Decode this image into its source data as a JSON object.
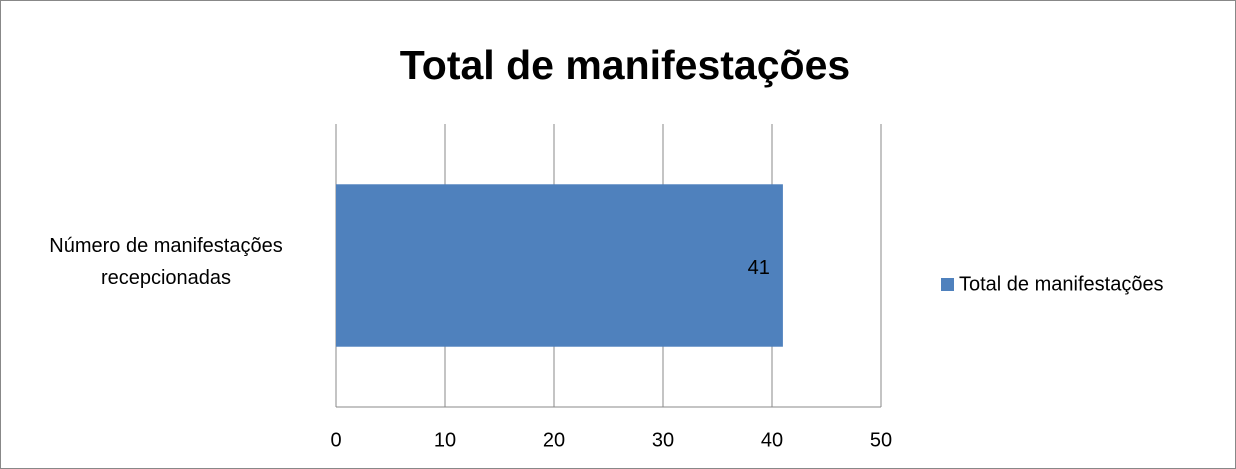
{
  "chart_data": {
    "type": "bar",
    "orientation": "horizontal",
    "title": "Total de manifestações",
    "categories": [
      "Número de manifestações recepcionadas"
    ],
    "series": [
      {
        "name": "Total de manifestações",
        "color": "#4f81bd",
        "values": [
          41
        ]
      }
    ],
    "xlim": [
      0,
      50
    ],
    "xticks": [
      0,
      10,
      20,
      30,
      40,
      50
    ],
    "grid": true,
    "legend": "right"
  }
}
